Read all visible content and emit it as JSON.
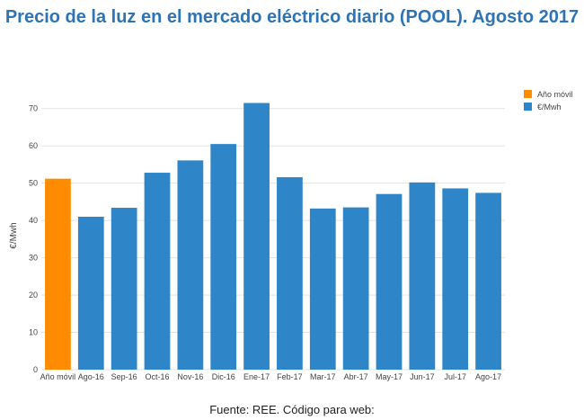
{
  "title": "Precio de la luz en el mercado eléctrico diario (POOL). Agosto 2017",
  "footer": "Fuente: REE. Código para web:",
  "colors": {
    "highlight": "#ff8c00",
    "bar": "#2e86c9",
    "grid": "#e3e3e3",
    "title": "#2e74b5"
  },
  "chart_data": {
    "type": "bar",
    "ylabel": "€/Mwh",
    "ylim": [
      0,
      75
    ],
    "yticks": [
      0,
      10,
      20,
      30,
      40,
      50,
      60,
      70
    ],
    "grid": true,
    "legend_position": "top-right",
    "categories": [
      "Año móvil",
      "Ago-16",
      "Sep-16",
      "Oct-16",
      "Nov-16",
      "Dic-16",
      "Ene-17",
      "Feb-17",
      "Mar-17",
      "Abr-17",
      "May-17",
      "Jun-17",
      "Jul-17",
      "Ago-17"
    ],
    "series": [
      {
        "name": "Año móvil",
        "color": "#ff8c00",
        "values": [
          51.2,
          null,
          null,
          null,
          null,
          null,
          null,
          null,
          null,
          null,
          null,
          null,
          null,
          null
        ]
      },
      {
        "name": "€/Mwh",
        "color": "#2e86c9",
        "values": [
          null,
          41.0,
          43.4,
          52.8,
          56.1,
          60.5,
          71.5,
          51.6,
          43.2,
          43.5,
          47.1,
          50.2,
          48.6,
          47.4
        ]
      }
    ]
  }
}
